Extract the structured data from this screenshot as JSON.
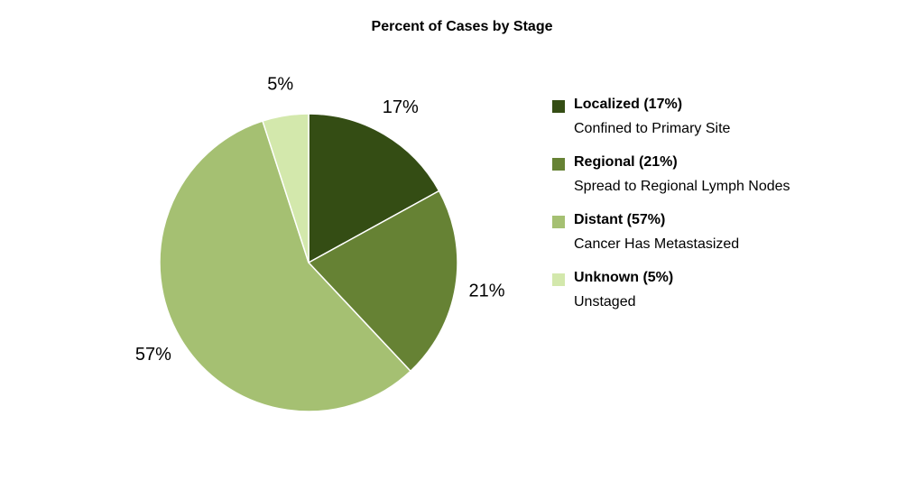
{
  "chart_data": {
    "type": "pie",
    "title": "Percent of Cases by Stage",
    "slices": [
      {
        "label": "Localized (17%)",
        "description": "Confined to Primary Site",
        "value": 17,
        "data_label": "17%",
        "color": "#344d14"
      },
      {
        "label": "Regional (21%)",
        "description": "Spread to Regional Lymph Nodes",
        "value": 21,
        "data_label": "21%",
        "color": "#668234"
      },
      {
        "label": "Distant (57%)",
        "description": "Cancer Has Metastasized",
        "value": 57,
        "data_label": "57%",
        "color": "#a5c072"
      },
      {
        "label": "Unknown (5%)",
        "description": "Unstaged",
        "value": 5,
        "data_label": "5%",
        "color": "#d3e8ac"
      }
    ],
    "legend_position": "right"
  }
}
